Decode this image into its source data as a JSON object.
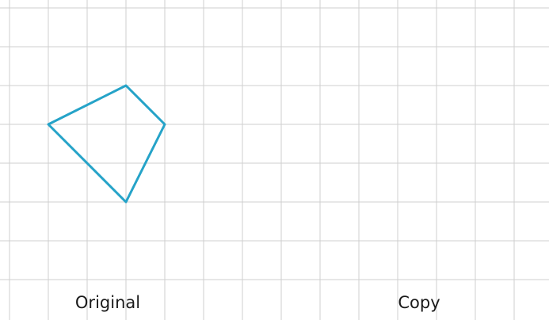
{
  "labels": {
    "original": "Original",
    "copy": "Copy"
  },
  "grid": {
    "columns": 14,
    "rows": 8
  },
  "original_shape": {
    "vertices": [
      [
        1,
        3
      ],
      [
        3,
        2
      ],
      [
        4,
        3
      ],
      [
        3,
        5
      ]
    ]
  },
  "colors": {
    "grid": "#cfcfcf",
    "shape": "#25a3c8",
    "text": "#1a1a1a"
  }
}
